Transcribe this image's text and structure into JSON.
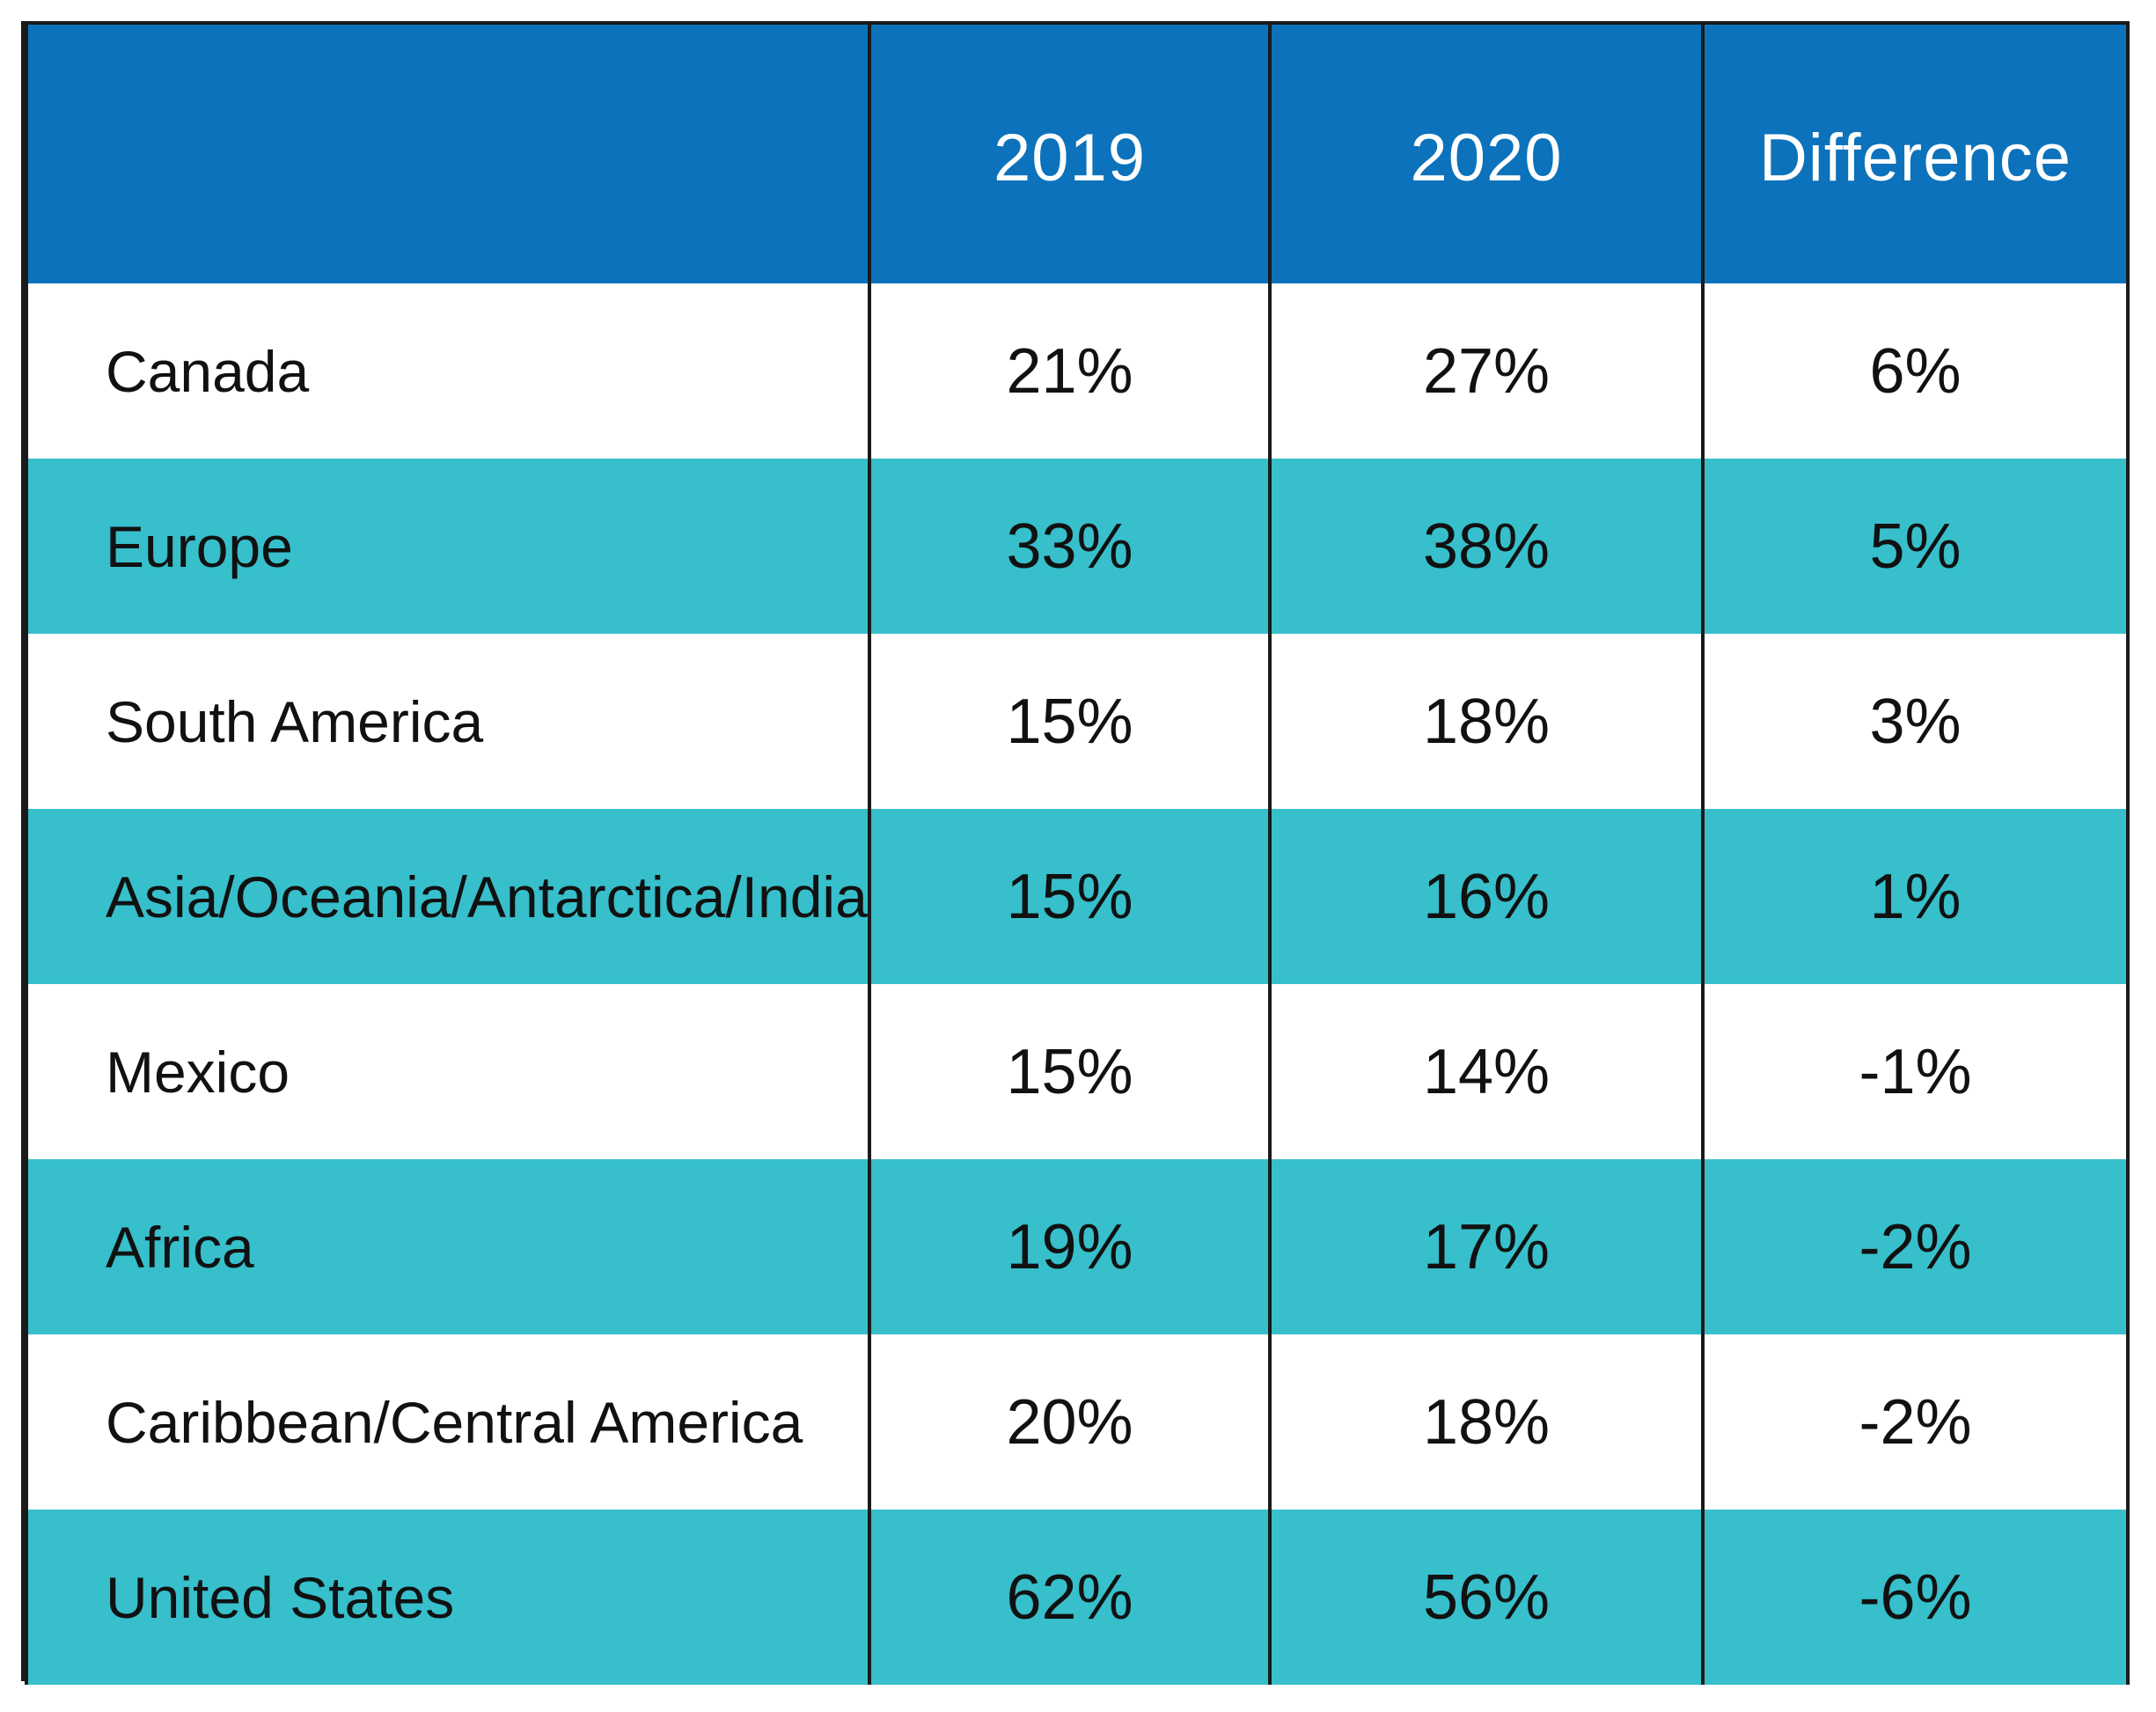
{
  "chart_data": {
    "type": "table",
    "title": "",
    "columns": [
      "",
      "2019",
      "2020",
      "Difference"
    ],
    "rows": [
      {
        "region": "Canada",
        "y2019": "21%",
        "y2020": "27%",
        "difference": "6%"
      },
      {
        "region": "Europe",
        "y2019": "33%",
        "y2020": "38%",
        "difference": "5%"
      },
      {
        "region": "South America",
        "y2019": "15%",
        "y2020": "18%",
        "difference": "3%"
      },
      {
        "region": "Asia/Oceania/Antarctica/India",
        "y2019": "15%",
        "y2020": "16%",
        "difference": "1%"
      },
      {
        "region": "Mexico",
        "y2019": "15%",
        "y2020": "14%",
        "difference": "-1%"
      },
      {
        "region": "Africa",
        "y2019": "19%",
        "y2020": "17%",
        "difference": "-2%"
      },
      {
        "region": "Caribbean/Central America",
        "y2019": "20%",
        "y2020": "18%",
        "difference": "-2%"
      },
      {
        "region": "United States",
        "y2019": "62%",
        "y2020": "56%",
        "difference": "-6%"
      }
    ]
  },
  "colors": {
    "header": "#0b72bb",
    "band": "#37bfcb",
    "white": "#ffffff",
    "border": "#1a1a1a"
  }
}
